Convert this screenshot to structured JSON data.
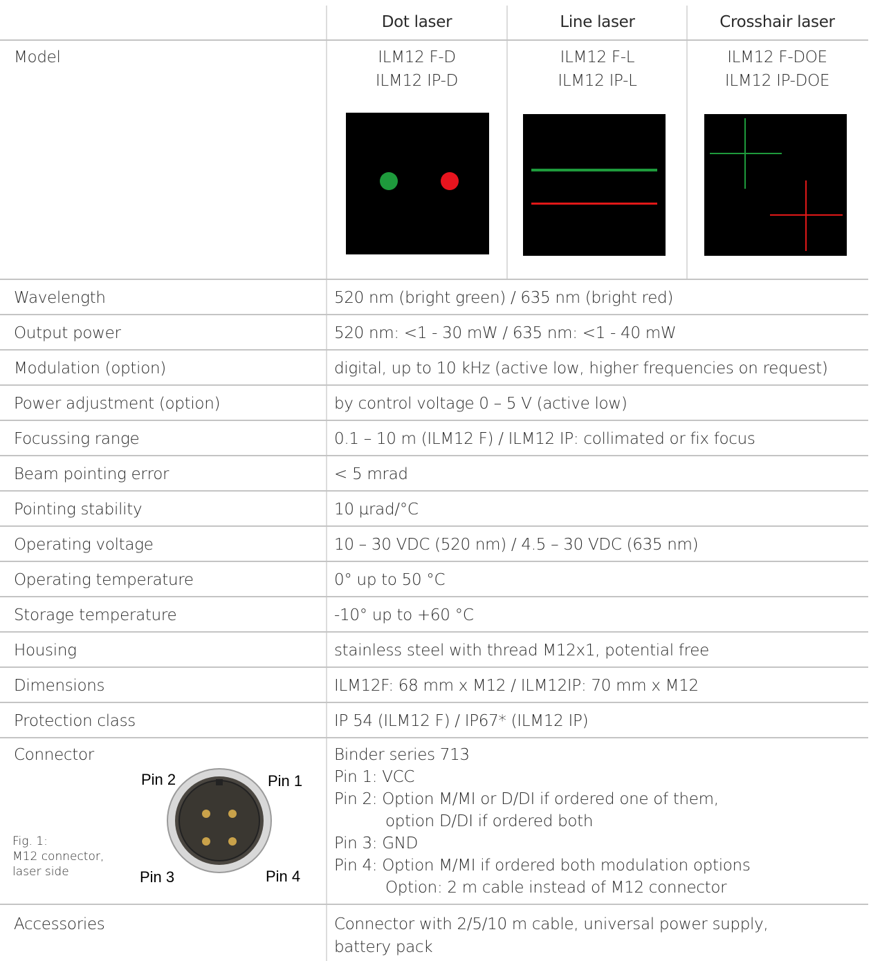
{
  "table": {
    "columns": [
      "Dot laser",
      "Line laser",
      "Crosshair laser"
    ],
    "model": {
      "label": "Model",
      "values": [
        [
          "ILM12 F-D",
          "ILM12 IP-D"
        ],
        [
          "ILM12 F-L",
          "ILM12 IP-L"
        ],
        [
          "ILM12 F-DOE",
          "ILM12 IP-DOE"
        ]
      ]
    },
    "rows": [
      [
        "Wavelength",
        "520 nm (bright green) / 635 nm (bright red)"
      ],
      [
        "Output power",
        "520 nm: <1 - 30 mW / 635 nm: <1 - 40 mW"
      ],
      [
        "Modulation (option)",
        "digital, up to 10 kHz (active low, higher frequencies on request)"
      ],
      [
        "Power adjustment (option)",
        "by control voltage 0 – 5 V (active low)"
      ],
      [
        "Focussing range",
        "0.1 – 10 m (ILM12 F) / ILM12 IP: collimated or fix focus"
      ],
      [
        "Beam pointing error",
        "< 5 mrad"
      ],
      [
        "Pointing stability",
        "10 µrad/°C"
      ],
      [
        "Operating voltage",
        "10 – 30 VDC (520 nm) / 4.5 – 30 VDC (635 nm)"
      ],
      [
        "Operating temperature",
        "0° up to 50 °C"
      ],
      [
        "Storage temperature",
        "-10° up to +60 °C"
      ],
      [
        "Housing",
        "stainless steel with thread M12x1, potential free"
      ],
      [
        "Dimensions",
        "ILM12F: 68 mm x M12 / ILM12IP: 70 mm x M12"
      ],
      [
        "Protection class",
        "IP 54 (ILM12 F) / IP67* (ILM12 IP)"
      ]
    ],
    "connector": {
      "label": "Connector",
      "figure": {
        "caption": [
          "Fig. 1:",
          "M12 connector,",
          "laser side"
        ],
        "pins": [
          "Pin 2",
          "Pin 1",
          "Pin 3",
          "Pin 4"
        ]
      },
      "lines": [
        "Binder series 713",
        "Pin 1: VCC",
        "Pin 2: Option M/MI or D/DI if ordered one of them,",
        "option D/DI if ordered both",
        "Pin 3: GND",
        "Pin 4: Option M/MI if ordered both modulation options",
        "Option: 2 m cable instead of M12 connector"
      ]
    },
    "accessories": {
      "label": "Accessories",
      "lines": [
        "Connector with 2/5/10 m cable, universal power supply,",
        "battery pack"
      ]
    }
  }
}
